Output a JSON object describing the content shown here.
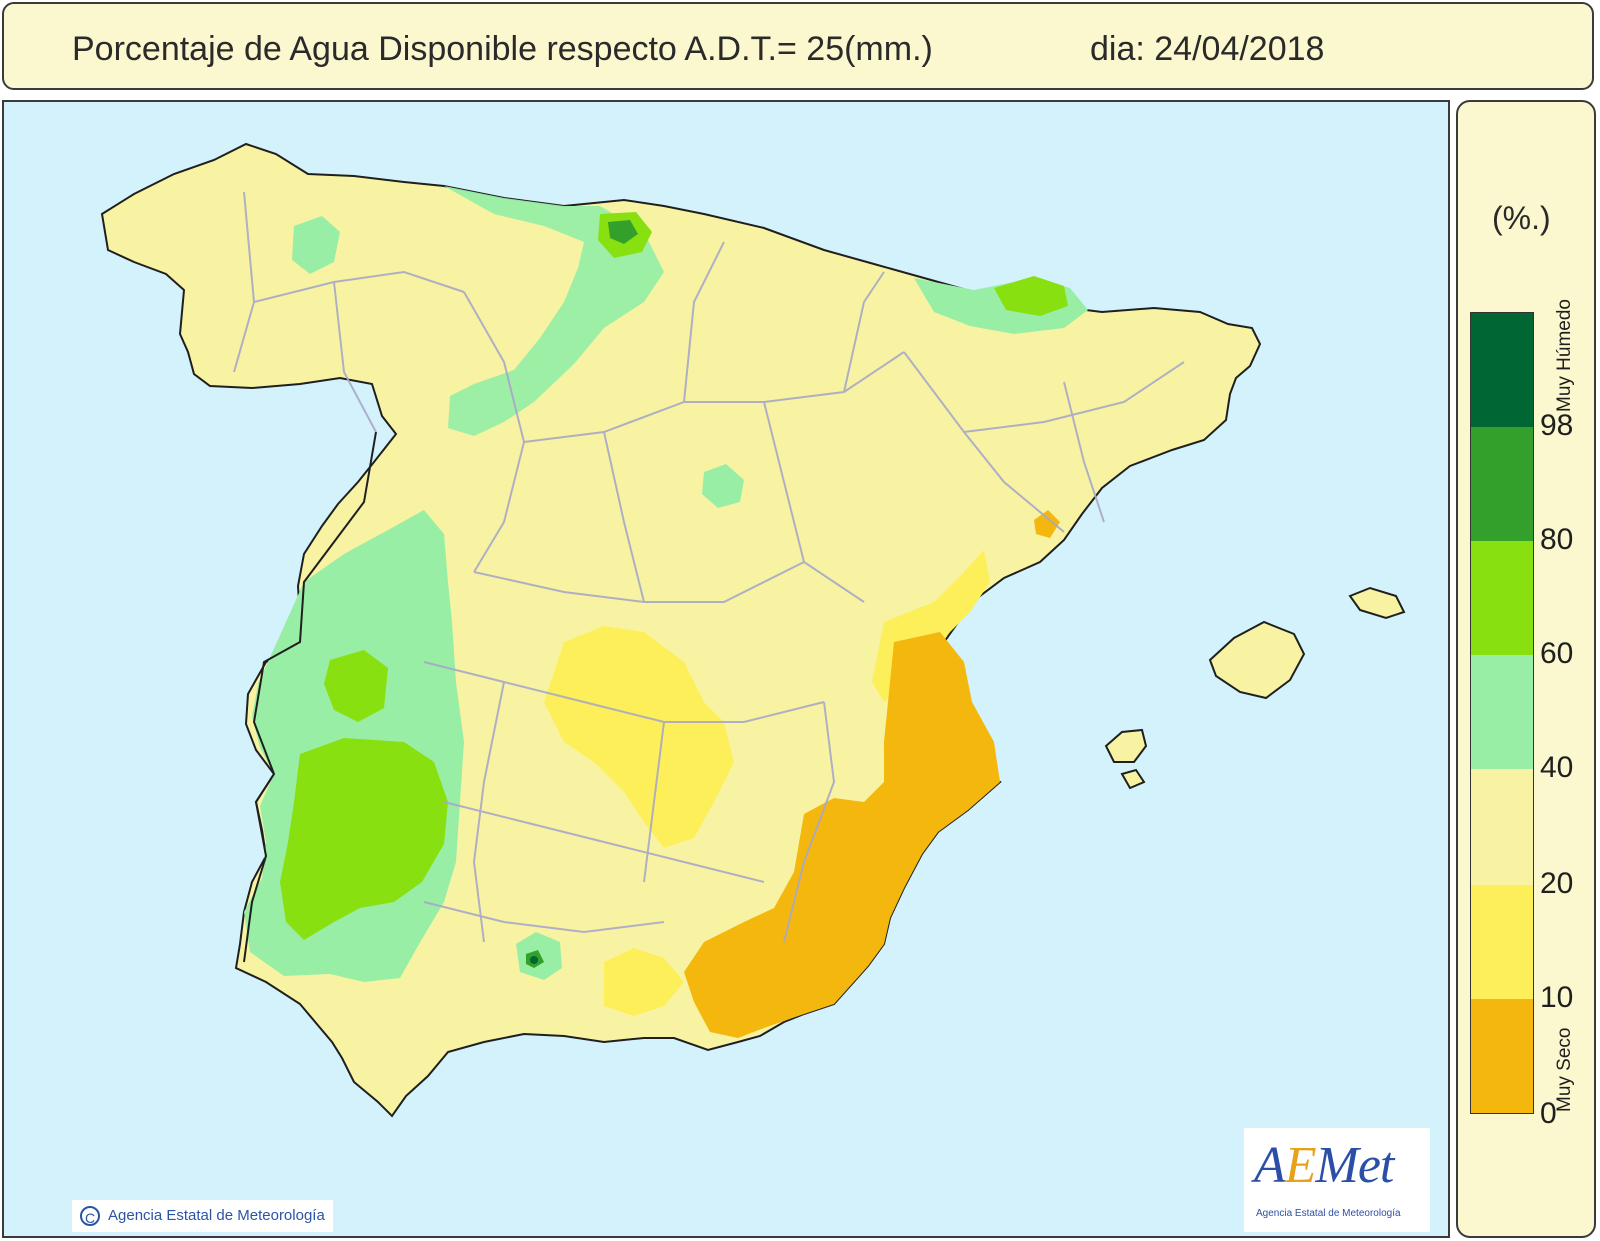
{
  "header": {
    "title": "Porcentaje de Agua Disponible respecto A.D.T.= 25(mm.)",
    "date": "dia: 24/04/2018"
  },
  "legend": {
    "unit": "(%.)",
    "top_label": "Muy Húmedo",
    "bottom_label": "Muy Seco",
    "classes": [
      {
        "range": "98-100",
        "color": "#006633"
      },
      {
        "range": "80-98",
        "color": "#33a02c"
      },
      {
        "range": "60-80",
        "color": "#88e010"
      },
      {
        "range": "40-60",
        "color": "#99eea6"
      },
      {
        "range": "20-40",
        "color": "#f8f3a2"
      },
      {
        "range": "10-20",
        "color": "#fcef5a"
      },
      {
        "range": "0-10",
        "color": "#f4b70d"
      }
    ],
    "ticks": [
      "98",
      "80",
      "60",
      "40",
      "20",
      "10",
      "0"
    ]
  },
  "map": {
    "sea_color": "#d3f2fb",
    "land_color": "#f8f3a2",
    "border_color": "#a8a8c8"
  },
  "footer": {
    "copyright_symbol": "C",
    "copyright": "Agencia Estatal de Meteorología",
    "logo_text_a": "A",
    "logo_text_e": "E",
    "logo_text_rest": "Met",
    "logo_subtitle": "Agencia Estatal de Meteorología"
  }
}
